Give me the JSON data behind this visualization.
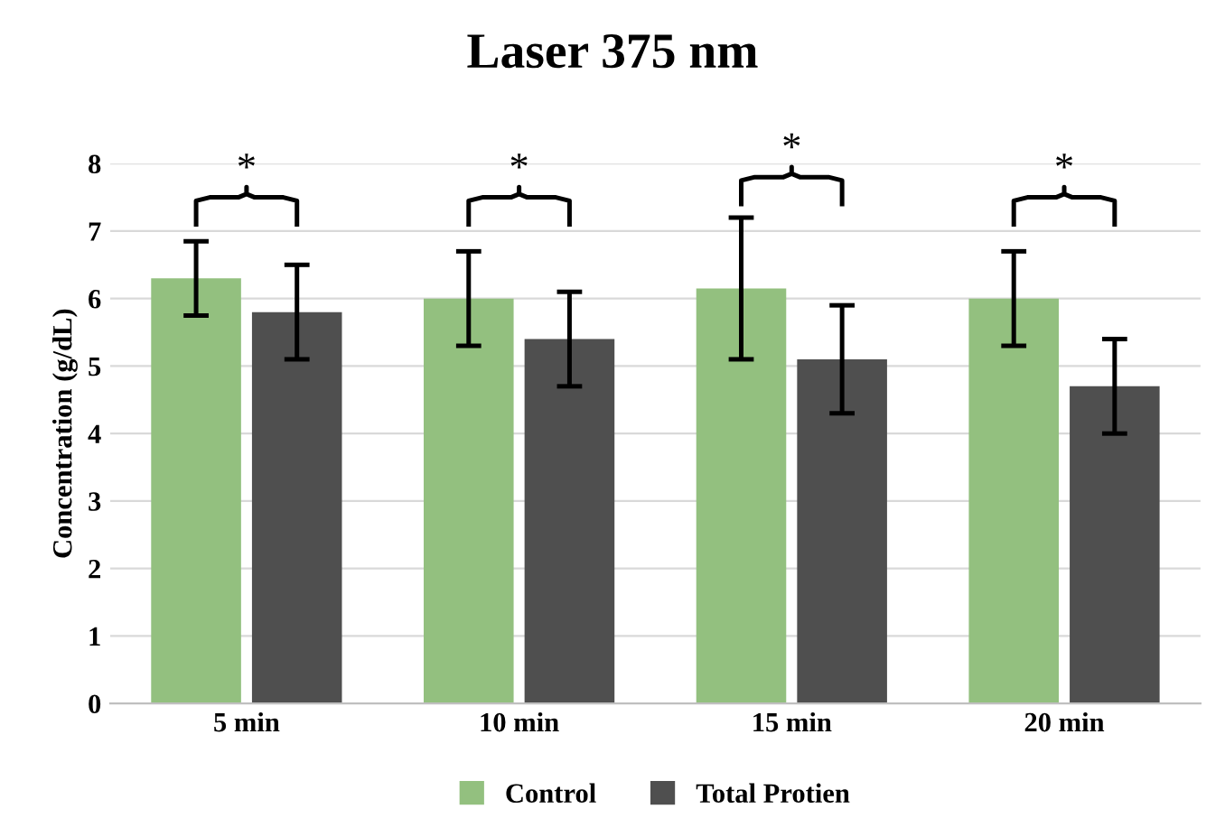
{
  "chart_data": {
    "type": "bar",
    "title": "Laser 375 nm",
    "ylabel": "Concentration (g/dL)",
    "categories": [
      "5 min",
      "10 min",
      "15 min",
      "20 min"
    ],
    "series": [
      {
        "name": "Control",
        "color": "#93c07f",
        "values": [
          6.3,
          6.0,
          6.15,
          6.0
        ],
        "errors": [
          0.55,
          0.7,
          1.05,
          0.7
        ]
      },
      {
        "name": "Total Protien",
        "color": "#4f4f4f",
        "values": [
          5.8,
          5.4,
          5.1,
          4.7
        ],
        "errors": [
          0.7,
          0.7,
          0.8,
          0.7
        ]
      }
    ],
    "ylim": [
      0,
      8
    ],
    "yticks": [
      0,
      1,
      2,
      3,
      4,
      5,
      6,
      7,
      8
    ],
    "grid": "y",
    "legend": "bottom",
    "annotations": [
      "*",
      "*",
      "*",
      "*"
    ]
  }
}
